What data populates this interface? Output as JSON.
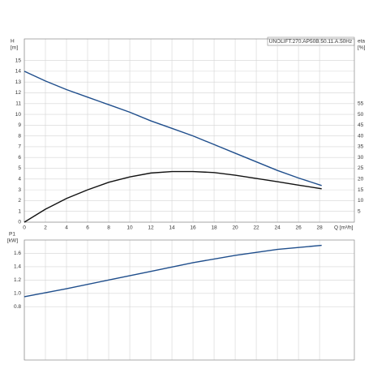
{
  "chart_data": [
    {
      "type": "line",
      "title": "UNOLIFT.270.AP50B.50.11.A.50Hz",
      "ylabel": "H",
      "yunit": "[m]",
      "y2label": "eta",
      "y2unit": "[%]",
      "xlabel": "Q [m³/h]",
      "x": [
        0,
        2,
        4,
        6,
        8,
        10,
        12,
        14,
        16,
        18,
        20,
        22,
        24,
        26,
        28.2
      ],
      "series": [
        {
          "color": "#1f4e8c",
          "values": [
            14,
            13.1,
            12.3,
            11.6,
            10.9,
            10.2,
            9.4,
            8.7,
            8.0,
            7.2,
            6.4,
            5.6,
            4.8,
            4.1,
            3.4
          ]
        },
        {
          "color": "#111111",
          "axis": "y2",
          "values": [
            0,
            6,
            11,
            15,
            18.5,
            21,
            22.8,
            23.5,
            23.5,
            23,
            21.8,
            20.3,
            18.8,
            17.2,
            15.5
          ]
        }
      ],
      "xlim": [
        0,
        31.3
      ],
      "xticks": [
        0,
        2,
        4,
        6,
        8,
        10,
        12,
        14,
        16,
        18,
        20,
        22,
        24,
        26,
        28
      ],
      "ylim": [
        0,
        17
      ],
      "yticks": [
        0,
        1,
        2,
        3,
        4,
        5,
        6,
        7,
        8,
        9,
        10,
        11,
        12,
        13,
        14,
        15
      ],
      "y2lim": [
        0,
        85
      ],
      "y2ticks": [
        5,
        10,
        15,
        20,
        25,
        30,
        35,
        40,
        45,
        50,
        55
      ],
      "grid": true
    },
    {
      "type": "line",
      "ylabel": "P1",
      "yunit": "[kW]",
      "x": [
        0,
        4,
        8,
        12,
        16,
        20,
        24,
        28.2
      ],
      "series": [
        {
          "color": "#1f4e8c",
          "values": [
            0.95,
            1.07,
            1.2,
            1.33,
            1.46,
            1.57,
            1.66,
            1.72
          ]
        }
      ],
      "xlim": [
        0,
        31.3
      ],
      "ylim": [
        0,
        1.8
      ],
      "yticks": [
        {
          "value": 0.8,
          "label": "0.8"
        },
        {
          "value": 1.0,
          "label": "1.0"
        },
        {
          "value": 1.2,
          "label": "1.2"
        },
        {
          "value": 1.4,
          "label": "1.4"
        },
        {
          "value": 1.6,
          "label": "1.6"
        }
      ],
      "grid": true
    }
  ]
}
